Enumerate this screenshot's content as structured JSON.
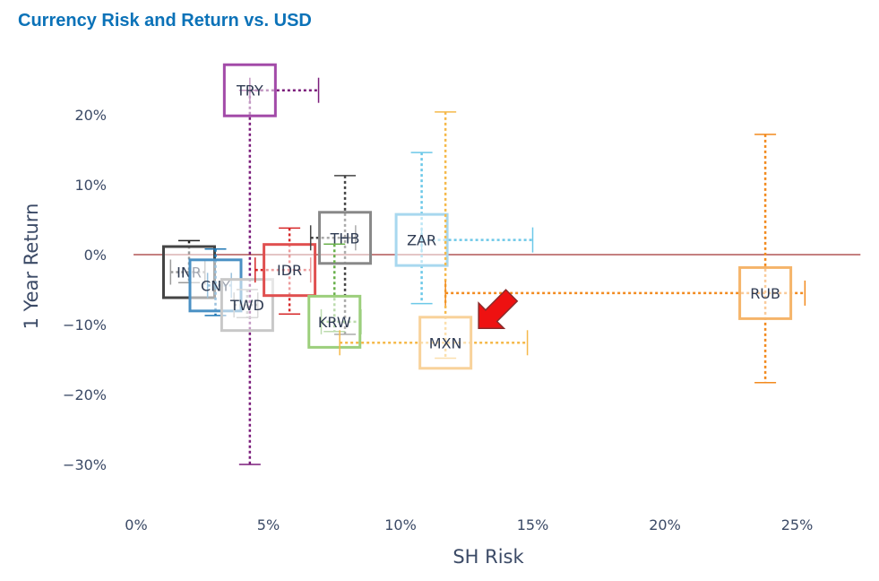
{
  "title": "Currency Risk and Return vs. USD",
  "chart_data": {
    "type": "scatter",
    "title": "Currency Risk and Return vs. USD",
    "xlabel": "SH Risk",
    "ylabel": "1 Year Return",
    "xlim": [
      -0.8,
      27.6
    ],
    "ylim": [
      -36,
      29
    ],
    "x_ticks": [
      0,
      5,
      10,
      15,
      20,
      25
    ],
    "x_tick_labels": [
      "0%",
      "5%",
      "10%",
      "15%",
      "20%",
      "25%"
    ],
    "y_ticks": [
      -30,
      -20,
      -10,
      0,
      10,
      20
    ],
    "y_tick_labels": [
      "−30%",
      "−20%",
      "−10%",
      "0%",
      "10%",
      "20%"
    ],
    "grid": false,
    "zero_line_color": "#8b0000",
    "series": [
      {
        "name": "TRY",
        "x": 4.3,
        "y": 23.5,
        "y_err_low": -30,
        "y_err_high": 23.5,
        "x_err_low": 4.3,
        "x_err_high": 6.9,
        "color": "#7b1d7b",
        "box_color": "#a24aa8"
      },
      {
        "name": "INR",
        "x": 2.0,
        "y": -2.5,
        "y_err_low": -4.0,
        "y_err_high": 2.0,
        "x_err_low": 1.3,
        "x_err_high": 2.6,
        "color": "#222222",
        "box_color": "#444444"
      },
      {
        "name": "CNY",
        "x": 3.0,
        "y": -4.4,
        "y_err_low": -8.7,
        "y_err_high": 0.8,
        "x_err_low": 2.7,
        "x_err_high": 3.6,
        "color": "#1f77b4",
        "box_color": "#4a90c4"
      },
      {
        "name": "TWD",
        "x": 4.2,
        "y": -7.2,
        "y_err_low": -9.0,
        "y_err_high": -5.0,
        "x_err_low": 3.7,
        "x_err_high": 4.6,
        "color": "#aaaaaa",
        "box_color": "#c8c8c8"
      },
      {
        "name": "IDR",
        "x": 5.8,
        "y": -2.2,
        "y_err_low": -8.5,
        "y_err_high": 3.8,
        "x_err_low": 4.5,
        "x_err_high": 6.6,
        "color": "#d62728",
        "box_color": "#e05050"
      },
      {
        "name": "THB",
        "x": 7.9,
        "y": 2.4,
        "y_err_low": -11.4,
        "y_err_high": 11.3,
        "x_err_low": 6.6,
        "x_err_high": 8.3,
        "color": "#444444",
        "box_color": "#888888"
      },
      {
        "name": "KRW",
        "x": 7.5,
        "y": -9.6,
        "y_err_low": -11.0,
        "y_err_high": 1.5,
        "x_err_low": 7.0,
        "x_err_high": 8.5,
        "color": "#6ab04c",
        "box_color": "#9ccf7c"
      },
      {
        "name": "ZAR",
        "x": 10.8,
        "y": 2.1,
        "y_err_low": -7.0,
        "y_err_high": 14.6,
        "x_err_low": 10.8,
        "x_err_high": 15.0,
        "color": "#6cc8e8",
        "box_color": "#a8d8ef"
      },
      {
        "name": "MXN",
        "x": 11.7,
        "y": -12.6,
        "y_err_low": -14.8,
        "y_err_high": 20.4,
        "x_err_low": 7.7,
        "x_err_high": 14.8,
        "color": "#f5b94a",
        "box_color": "#f8d29a"
      },
      {
        "name": "RUB",
        "x": 23.8,
        "y": -5.5,
        "y_err_low": -18.3,
        "y_err_high": 17.2,
        "x_err_low": 11.7,
        "x_err_high": 25.3,
        "color": "#f28a1e",
        "box_color": "#f5b46a"
      }
    ],
    "annotation": {
      "target": "MXN",
      "shape": "arrow",
      "color": "#ee1111"
    }
  }
}
